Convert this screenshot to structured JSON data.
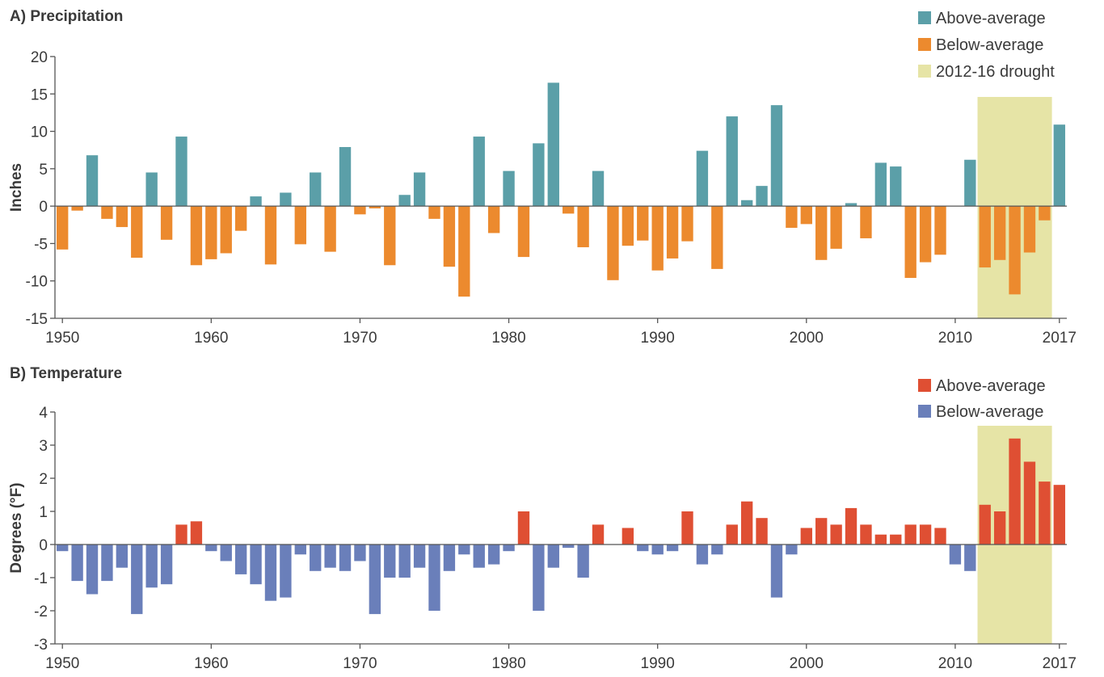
{
  "chart_data": [
    {
      "type": "bar",
      "title": "A) Precipitation",
      "ylabel": "Inches",
      "xlabel": "",
      "ylim": [
        -15,
        20
      ],
      "yticks": [
        -15,
        -10,
        -5,
        0,
        5,
        10,
        15,
        20
      ],
      "xticks": [
        1950,
        1960,
        1970,
        1980,
        1990,
        2000,
        2010,
        2017
      ],
      "grid": false,
      "legend_position": "top-right",
      "colors": {
        "above": "#5b9fa8",
        "below": "#ec8a2e",
        "drought": "#e6e4a6"
      },
      "legend": [
        {
          "label": "Above-average",
          "kind": "above"
        },
        {
          "label": "Below-average",
          "kind": "below"
        },
        {
          "label": "2012-16 drought",
          "kind": "drought"
        }
      ],
      "highlight": {
        "label": "2012-16 drought",
        "from": 2012,
        "to": 2016
      },
      "x": [
        1950,
        1951,
        1952,
        1953,
        1954,
        1955,
        1956,
        1957,
        1958,
        1959,
        1960,
        1961,
        1962,
        1963,
        1964,
        1965,
        1966,
        1967,
        1968,
        1969,
        1970,
        1971,
        1972,
        1973,
        1974,
        1975,
        1976,
        1977,
        1978,
        1979,
        1980,
        1981,
        1982,
        1983,
        1984,
        1985,
        1986,
        1987,
        1988,
        1989,
        1990,
        1991,
        1992,
        1993,
        1994,
        1995,
        1996,
        1997,
        1998,
        1999,
        2000,
        2001,
        2002,
        2003,
        2004,
        2005,
        2006,
        2007,
        2008,
        2009,
        2010,
        2011,
        2012,
        2013,
        2014,
        2015,
        2016,
        2017
      ],
      "values": [
        -5.8,
        -0.6,
        6.8,
        -1.7,
        -2.8,
        -6.9,
        4.5,
        -4.5,
        9.3,
        -7.9,
        -7.1,
        -6.3,
        -3.3,
        1.3,
        -7.8,
        1.8,
        -5.1,
        4.5,
        -6.1,
        7.9,
        -1.1,
        -0.3,
        -7.9,
        1.5,
        4.5,
        -1.7,
        -8.1,
        -12.1,
        9.3,
        -3.6,
        4.7,
        -6.8,
        8.4,
        16.5,
        -1.0,
        -5.5,
        4.7,
        -9.9,
        -5.3,
        -4.6,
        -8.6,
        -7.0,
        -4.7,
        7.4,
        -8.4,
        12.0,
        0.8,
        2.7,
        13.5,
        -2.9,
        -2.4,
        -7.2,
        -5.7,
        0.4,
        -4.3,
        5.8,
        5.3,
        -9.6,
        -7.5,
        -6.5,
        0.0,
        6.2,
        -8.2,
        -7.2,
        -11.8,
        -6.2,
        -1.9,
        10.9
      ]
    },
    {
      "type": "bar",
      "title": "B) Temperature",
      "ylabel": "Degrees (°F)",
      "xlabel": "",
      "ylim": [
        -3,
        4
      ],
      "yticks": [
        -3,
        -2,
        -1,
        0,
        1,
        2,
        3,
        4
      ],
      "xticks": [
        1950,
        1960,
        1970,
        1980,
        1990,
        2000,
        2010,
        2017
      ],
      "grid": false,
      "legend_position": "top-right",
      "colors": {
        "above": "#df4f33",
        "below": "#6a7fba",
        "drought": "#e6e4a6"
      },
      "legend": [
        {
          "label": "Above-average",
          "kind": "above"
        },
        {
          "label": "Below-average",
          "kind": "below"
        }
      ],
      "highlight": {
        "label": "",
        "from": 2012,
        "to": 2016
      },
      "x": [
        1950,
        1951,
        1952,
        1953,
        1954,
        1955,
        1956,
        1957,
        1958,
        1959,
        1960,
        1961,
        1962,
        1963,
        1964,
        1965,
        1966,
        1967,
        1968,
        1969,
        1970,
        1971,
        1972,
        1973,
        1974,
        1975,
        1976,
        1977,
        1978,
        1979,
        1980,
        1981,
        1982,
        1983,
        1984,
        1985,
        1986,
        1987,
        1988,
        1989,
        1990,
        1991,
        1992,
        1993,
        1994,
        1995,
        1996,
        1997,
        1998,
        1999,
        2000,
        2001,
        2002,
        2003,
        2004,
        2005,
        2006,
        2007,
        2008,
        2009,
        2010,
        2011,
        2012,
        2013,
        2014,
        2015,
        2016,
        2017
      ],
      "values": [
        -0.2,
        -1.1,
        -1.5,
        -1.1,
        -0.7,
        -2.1,
        -1.3,
        -1.2,
        0.6,
        0.7,
        -0.2,
        -0.5,
        -0.9,
        -1.2,
        -1.7,
        -1.6,
        -0.3,
        -0.8,
        -0.7,
        -0.8,
        -0.5,
        -2.1,
        -1.0,
        -1.0,
        -0.7,
        -2.0,
        -0.8,
        -0.3,
        -0.7,
        -0.6,
        -0.2,
        1.0,
        -2.0,
        -0.7,
        -0.1,
        -1.0,
        0.6,
        0.0,
        0.5,
        -0.2,
        -0.3,
        -0.2,
        1.0,
        -0.6,
        -0.3,
        0.6,
        1.3,
        0.8,
        -1.6,
        -0.3,
        0.5,
        0.8,
        0.6,
        1.1,
        0.6,
        0.3,
        0.3,
        0.6,
        0.6,
        0.5,
        -0.6,
        -0.8,
        1.2,
        1.0,
        3.2,
        2.5,
        1.9,
        1.8
      ]
    }
  ]
}
